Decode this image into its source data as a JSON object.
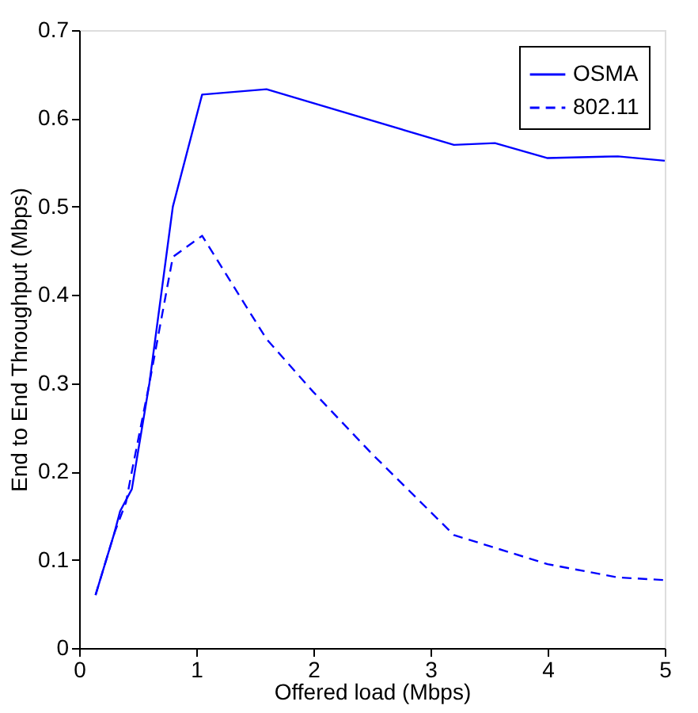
{
  "chart_data": {
    "type": "line",
    "xlabel": "Offered load (Mbps)",
    "ylabel": "End to End Throughput (Mbps)",
    "xlim": [
      0,
      5
    ],
    "ylim": [
      0,
      0.7
    ],
    "xticks": [
      0,
      1,
      2,
      3,
      4,
      5
    ],
    "yticks": [
      0,
      0.1,
      0.2,
      0.3,
      0.4,
      0.5,
      0.6,
      0.7
    ],
    "grid": false,
    "legend": "top right",
    "marker": "none",
    "series": [
      {
        "name": "OSMA",
        "color": "#0000ff",
        "line_style": "solid",
        "x": [
          0.14,
          0.3,
          0.35,
          0.45,
          0.6,
          0.8,
          1.05,
          1.6,
          3.2,
          3.55,
          4,
          4.6,
          5
        ],
        "values": [
          0.06,
          0.13,
          0.155,
          0.18,
          0.3,
          0.5,
          0.627,
          0.633,
          0.57,
          0.572,
          0.555,
          0.557,
          0.552
        ]
      },
      {
        "name": "802.11",
        "color": "#0000ff",
        "line_style": "dashed",
        "x": [
          0.14,
          0.3,
          0.4,
          0.45,
          0.6,
          0.8,
          1.05,
          1.6,
          2,
          2.5,
          3.2,
          4,
          4.6,
          5
        ],
        "values": [
          0.06,
          0.13,
          0.165,
          0.2,
          0.3,
          0.443,
          0.467,
          0.35,
          0.29,
          0.22,
          0.128,
          0.095,
          0.08,
          0.077
        ]
      }
    ]
  }
}
